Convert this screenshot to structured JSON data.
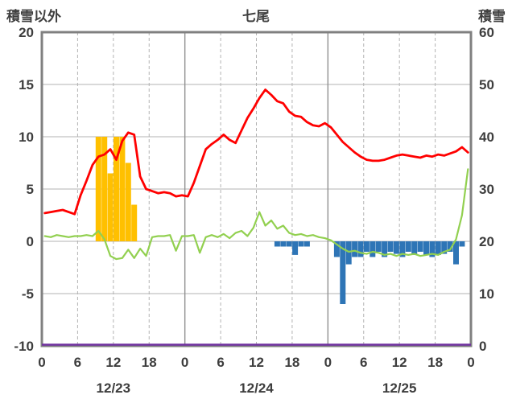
{
  "chart_data": {
    "type": "line",
    "title": "七尾",
    "left_axis": {
      "label": "積雪以外",
      "min": -10,
      "max": 20,
      "ticks": [
        20,
        15,
        10,
        5,
        0,
        -5,
        -10
      ]
    },
    "right_axis": {
      "label": "積雪",
      "min": 0,
      "max": 60,
      "ticks": [
        60,
        50,
        40,
        30,
        20,
        10,
        0
      ]
    },
    "x_axis": {
      "hours_total": 72,
      "tick_every": 6,
      "tick_labels": [
        "0",
        "6",
        "12",
        "18",
        "0",
        "6",
        "12",
        "18",
        "0",
        "6",
        "12",
        "18",
        "0"
      ],
      "day_labels": [
        "12/23",
        "12/24",
        "12/25"
      ],
      "day_label_centers": [
        12,
        36,
        60
      ],
      "day_boundaries": [
        24,
        48
      ]
    },
    "colors": {
      "red": "#ff0000",
      "green": "#92d050",
      "orange": "#ffc000",
      "blue": "#2e75b6",
      "purple": "#7030a0",
      "grid": "#b3b3b3",
      "day_line": "#909090",
      "border": "#808080",
      "text": "#3d3d3d"
    },
    "series": [
      {
        "name": "orange-bars",
        "type": "bar",
        "axis": "left",
        "color": "#ffc000",
        "points": [
          [
            9,
            10.0
          ],
          [
            10,
            10.0
          ],
          [
            11,
            6.5
          ],
          [
            12,
            10.0
          ],
          [
            13,
            10.0
          ],
          [
            14,
            7.5
          ],
          [
            15,
            3.5
          ]
        ]
      },
      {
        "name": "blue-bars",
        "type": "bar",
        "axis": "left",
        "color": "#2e75b6",
        "points": [
          [
            39,
            -0.5
          ],
          [
            40,
            -0.5
          ],
          [
            41,
            -0.5
          ],
          [
            42,
            -1.3
          ],
          [
            43,
            -0.5
          ],
          [
            44,
            -0.5
          ],
          [
            49,
            -1.5
          ],
          [
            50,
            -6.0
          ],
          [
            51,
            -2.2
          ],
          [
            52,
            -1.5
          ],
          [
            53,
            -1.5
          ],
          [
            54,
            -1.0
          ],
          [
            55,
            -1.5
          ],
          [
            56,
            -1.0
          ],
          [
            57,
            -1.5
          ],
          [
            58,
            -1.0
          ],
          [
            59,
            -1.2
          ],
          [
            60,
            -1.5
          ],
          [
            61,
            -1.0
          ],
          [
            62,
            -1.3
          ],
          [
            63,
            -1.0
          ],
          [
            64,
            -1.3
          ],
          [
            65,
            -1.5
          ],
          [
            66,
            -1.3
          ],
          [
            67,
            -1.2
          ],
          [
            68,
            -1.0
          ],
          [
            69,
            -2.2
          ],
          [
            70,
            -0.5
          ]
        ]
      },
      {
        "name": "purple-line",
        "type": "hline",
        "axis": "left",
        "color": "#7030a0",
        "width": 2.5,
        "value": -10
      },
      {
        "name": "green-line",
        "type": "line",
        "axis": "left",
        "color": "#92d050",
        "width": 2.2,
        "start_hour": 0,
        "values": [
          0.5,
          0.4,
          0.6,
          0.5,
          0.4,
          0.5,
          0.5,
          0.6,
          0.5,
          1.0,
          0.2,
          -1.4,
          -1.7,
          -1.6,
          -0.8,
          -1.6,
          -0.7,
          -1.4,
          0.4,
          0.5,
          0.5,
          0.6,
          -0.9,
          0.5,
          0.5,
          0.6,
          -1.1,
          0.4,
          0.6,
          0.4,
          0.7,
          0.3,
          0.8,
          1.0,
          0.5,
          1.3,
          2.8,
          1.5,
          2.0,
          1.2,
          1.5,
          0.8,
          0.6,
          0.7,
          0.5,
          0.6,
          0.4,
          0.3,
          0.1,
          -0.3,
          -0.7,
          -1.0,
          -0.9,
          -1.1,
          -1.2,
          -1.0,
          -1.1,
          -1.3,
          -1.2,
          -1.4,
          -1.2,
          -1.3,
          -1.2,
          -1.4,
          -1.3,
          -1.2,
          -1.3,
          -1.0,
          -0.8,
          0.2,
          2.5,
          6.9
        ]
      },
      {
        "name": "red-line",
        "type": "line",
        "axis": "left",
        "color": "#ff0000",
        "width": 2.8,
        "start_hour": 0,
        "values": [
          2.7,
          2.8,
          2.9,
          3.0,
          2.8,
          2.6,
          4.4,
          5.8,
          7.3,
          8.1,
          8.3,
          8.8,
          7.8,
          9.6,
          10.4,
          10.2,
          6.2,
          5.0,
          4.8,
          4.6,
          4.7,
          4.6,
          4.3,
          4.4,
          4.3,
          5.6,
          7.2,
          8.8,
          9.3,
          9.7,
          10.2,
          9.7,
          9.4,
          10.6,
          11.8,
          12.7,
          13.7,
          14.5,
          14.0,
          13.4,
          13.2,
          12.4,
          12.0,
          11.9,
          11.4,
          11.1,
          11.0,
          11.3,
          10.9,
          10.2,
          9.5,
          9.0,
          8.5,
          8.1,
          7.8,
          7.7,
          7.7,
          7.8,
          8.0,
          8.2,
          8.3,
          8.2,
          8.1,
          8.0,
          8.2,
          8.1,
          8.3,
          8.2,
          8.4,
          8.6,
          9.0,
          8.5
        ]
      }
    ]
  }
}
